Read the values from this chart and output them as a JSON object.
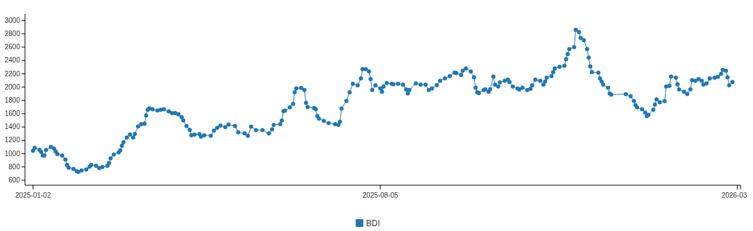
{
  "chart_data": {
    "type": "line",
    "marker": "circle",
    "line_style": "solid",
    "legend": "bottom",
    "grid": false,
    "xlim": [
      "2024-12-28",
      "2026-03-16"
    ],
    "xticks": [
      {
        "value": "2025-01-02",
        "label": "2025-01-02"
      },
      {
        "value": "2025-08-05",
        "label": "2025-08-05"
      },
      {
        "value": "2026-03-14",
        "label": "2026-03"
      }
    ],
    "ylim": [
      525,
      3100
    ],
    "yticks": [
      600,
      800,
      1000,
      1200,
      1400,
      1600,
      1800,
      2000,
      2200,
      2400,
      2600,
      2800,
      3000
    ],
    "series": [
      {
        "name": "BDI",
        "color": "#1f77b4",
        "x": [
          "2025-01-02",
          "2025-01-03",
          "2025-01-06",
          "2025-01-07",
          "2025-01-08",
          "2025-01-09",
          "2025-01-10",
          "2025-01-13",
          "2025-01-15",
          "2025-01-16",
          "2025-01-17",
          "2025-01-20",
          "2025-01-22",
          "2025-01-23",
          "2025-01-24",
          "2025-01-27",
          "2025-01-29",
          "2025-01-30",
          "2025-02-01",
          "2025-02-04",
          "2025-02-06",
          "2025-02-07",
          "2025-02-10",
          "2025-02-12",
          "2025-02-14",
          "2025-02-17",
          "2025-02-18",
          "2025-02-19",
          "2025-02-21",
          "2025-02-24",
          "2025-02-25",
          "2025-02-26",
          "2025-02-27",
          "2025-03-01",
          "2025-03-03",
          "2025-03-05",
          "2025-03-06",
          "2025-03-08",
          "2025-03-10",
          "2025-03-12",
          "2025-03-13",
          "2025-03-14",
          "2025-03-15",
          "2025-03-17",
          "2025-03-20",
          "2025-03-22",
          "2025-03-24",
          "2025-03-27",
          "2025-03-29",
          "2025-03-31",
          "2025-04-02",
          "2025-04-04",
          "2025-04-05",
          "2025-04-07",
          "2025-04-09",
          "2025-04-10",
          "2025-04-12",
          "2025-04-15",
          "2025-04-16",
          "2025-04-18",
          "2025-04-22",
          "2025-04-24",
          "2025-04-26",
          "2025-04-28",
          "2025-05-01",
          "2025-05-03",
          "2025-05-07",
          "2025-05-09",
          "2025-05-13",
          "2025-05-15",
          "2025-05-17",
          "2025-05-20",
          "2025-05-24",
          "2025-05-28",
          "2025-05-30",
          "2025-05-31",
          "2025-06-04",
          "2025-06-05",
          "2025-06-06",
          "2025-06-07",
          "2025-06-10",
          "2025-06-12",
          "2025-06-13",
          "2025-06-14",
          "2025-06-17",
          "2025-06-19",
          "2025-06-20",
          "2025-06-21",
          "2025-06-25",
          "2025-06-26",
          "2025-06-27",
          "2025-06-28",
          "2025-07-01",
          "2025-07-04",
          "2025-07-08",
          "2025-07-10",
          "2025-07-11",
          "2025-07-12",
          "2025-07-15",
          "2025-07-17",
          "2025-07-19",
          "2025-07-22",
          "2025-07-24",
          "2025-07-25",
          "2025-07-27",
          "2025-07-29",
          "2025-07-30",
          "2025-07-31",
          "2025-08-02",
          "2025-08-05",
          "2025-08-06",
          "2025-08-07",
          "2025-08-09",
          "2025-08-12",
          "2025-08-13",
          "2025-08-16",
          "2025-08-19",
          "2025-08-21",
          "2025-08-22",
          "2025-08-23",
          "2025-08-27",
          "2025-08-30",
          "2025-09-02",
          "2025-09-04",
          "2025-09-06",
          "2025-09-09",
          "2025-09-11",
          "2025-09-14",
          "2025-09-17",
          "2025-09-20",
          "2025-09-21",
          "2025-09-24",
          "2025-09-25",
          "2025-09-27",
          "2025-09-30",
          "2025-10-02",
          "2025-10-03",
          "2025-10-04",
          "2025-10-05",
          "2025-10-08",
          "2025-10-09",
          "2025-10-11",
          "2025-10-12",
          "2025-10-14",
          "2025-10-15",
          "2025-10-17",
          "2025-10-18",
          "2025-10-21",
          "2025-10-23",
          "2025-10-24",
          "2025-10-26",
          "2025-10-29",
          "2025-10-30",
          "2025-11-01",
          "2025-11-04",
          "2025-11-06",
          "2025-11-07",
          "2025-11-09",
          "2025-11-12",
          "2025-11-14",
          "2025-11-15",
          "2025-11-16",
          "2025-11-19",
          "2025-11-20",
          "2025-11-21",
          "2025-11-24",
          "2025-11-27",
          "2025-11-28",
          "2025-11-29",
          "2025-11-30",
          "2025-12-03",
          "2025-12-04",
          "2025-12-06",
          "2025-12-07",
          "2025-12-09",
          "2025-12-11",
          "2025-12-12",
          "2025-12-13",
          "2025-12-14",
          "2025-12-18",
          "2025-12-19",
          "2025-12-20",
          "2025-12-21",
          "2025-12-24",
          "2025-12-25",
          "2025-12-26",
          "2026-01-04",
          "2026-01-07",
          "2026-01-09",
          "2026-01-10",
          "2026-01-11",
          "2026-01-14",
          "2026-01-16",
          "2026-01-17",
          "2026-01-18",
          "2026-01-21",
          "2026-01-22",
          "2026-01-23",
          "2026-01-25",
          "2026-01-28",
          "2026-01-29",
          "2026-01-31",
          "2026-02-01",
          "2026-02-04",
          "2026-02-05",
          "2026-02-06",
          "2026-02-09",
          "2026-02-11",
          "2026-02-13",
          "2026-02-14",
          "2026-02-16",
          "2026-02-18",
          "2026-02-20",
          "2026-02-21",
          "2026-02-23",
          "2026-02-25",
          "2026-02-28",
          "2026-03-02",
          "2026-03-04",
          "2026-03-05",
          "2026-03-07",
          "2026-03-08",
          "2026-03-09",
          "2026-03-11"
        ],
        "values": [
          1043,
          1085,
          1057,
          1025,
          973,
          970,
          1053,
          1102,
          1074,
          1033,
          994,
          970,
          910,
          830,
          788,
          771,
          736,
          725,
          746,
          761,
          803,
          830,
          816,
          782,
          799,
          816,
          858,
          928,
          987,
          1018,
          1049,
          1119,
          1172,
          1242,
          1287,
          1242,
          1294,
          1409,
          1443,
          1450,
          1572,
          1660,
          1680,
          1666,
          1649,
          1660,
          1666,
          1635,
          1610,
          1610,
          1590,
          1548,
          1499,
          1415,
          1357,
          1276,
          1287,
          1294,
          1255,
          1276,
          1269,
          1346,
          1388,
          1422,
          1398,
          1436,
          1415,
          1321,
          1304,
          1269,
          1405,
          1353,
          1353,
          1304,
          1363,
          1433,
          1443,
          1496,
          1639,
          1646,
          1694,
          1747,
          1921,
          1980,
          1987,
          1956,
          1764,
          1701,
          1684,
          1666,
          1565,
          1527,
          1492,
          1457,
          1443,
          1433,
          1478,
          1677,
          1791,
          1921,
          2050,
          2025,
          2130,
          2269,
          2269,
          2234,
          2119,
          1957,
          2025,
          1980,
          1931,
          2007,
          2060,
          2050,
          2042,
          2050,
          2036,
          1963,
          1904,
          1956,
          2056,
          2036,
          2036,
          1956,
          1980,
          2029,
          2095,
          2130,
          2164,
          2217,
          2210,
          2182,
          2245,
          2280,
          2234,
          2147,
          1990,
          1921,
          1910,
          1956,
          1966,
          1931,
          1966,
          2157,
          2036,
          2007,
          2070,
          2095,
          2112,
          2077,
          2007,
          1980,
          1963,
          1990,
          1956,
          1973,
          2025,
          2112,
          2095,
          2036,
          2084,
          2140,
          2164,
          2224,
          2280,
          2304,
          2322,
          2419,
          2496,
          2572,
          2600,
          2861,
          2826,
          2739,
          2705,
          2572,
          2443,
          2311,
          2224,
          2217,
          2130,
          2084,
          2036,
          1990,
          1904,
          1886,
          1893,
          1862,
          1791,
          1728,
          1694,
          1666,
          1617,
          1562,
          1583,
          1660,
          1736,
          1816,
          1770,
          1788,
          2007,
          2018,
          2157,
          2140,
          2042,
          1963,
          1931,
          1896,
          1966,
          2105,
          2095,
          2119,
          2095,
          2036,
          2056,
          2130,
          2140,
          2154,
          2199,
          2258,
          2245,
          2147,
          2025,
          2077
        ]
      }
    ]
  }
}
